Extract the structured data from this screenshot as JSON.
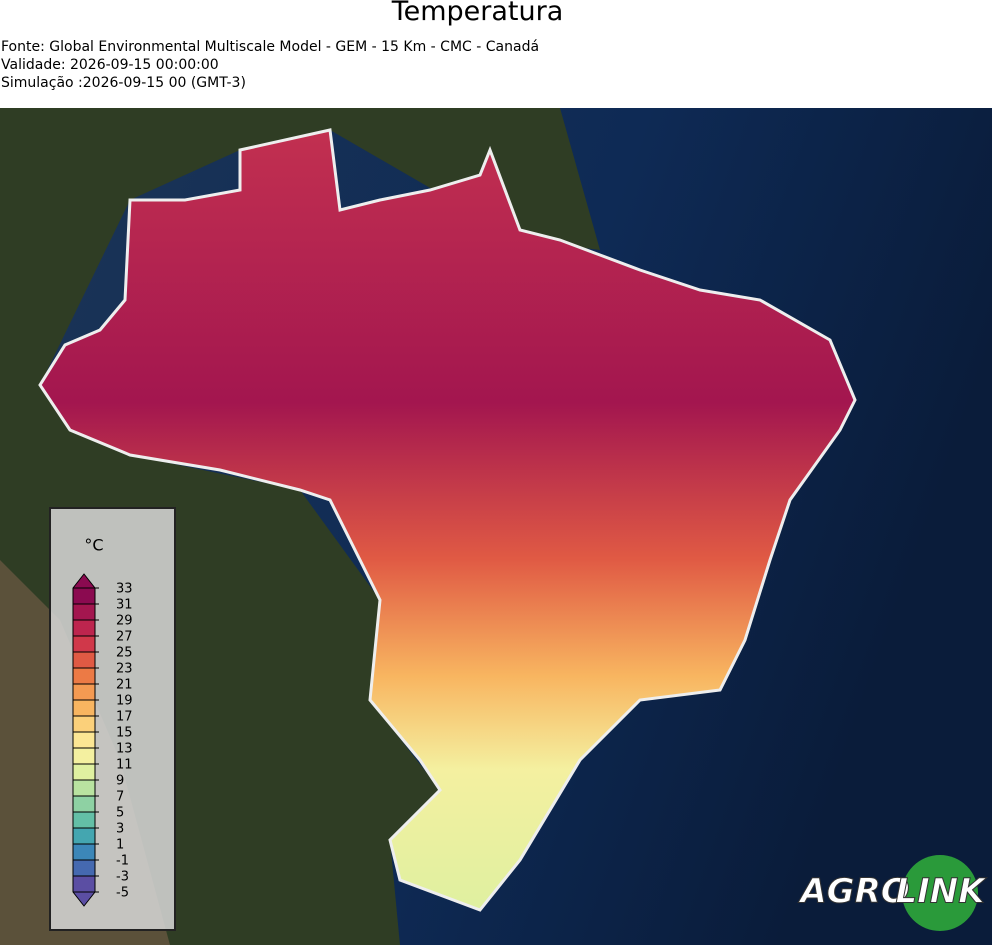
{
  "header": {
    "title": "Temperatura",
    "lines": [
      "Fonte: Global Environmental Multiscale Model - GEM - 15 Km - CMC - Canadá",
      "Validade: 2026-09-15 00:00:00",
      "Simulação :2026-09-15 00 (GMT-3)"
    ]
  },
  "legend": {
    "unit": "°C",
    "ticks": [
      33,
      31,
      29,
      27,
      25,
      23,
      21,
      19,
      17,
      15,
      13,
      11,
      9,
      7,
      5,
      3,
      1,
      -1,
      -3,
      -5
    ],
    "colors": [
      "#8b0a50",
      "#a3164f",
      "#bd254e",
      "#d0384a",
      "#e05a44",
      "#ec7a45",
      "#f49a52",
      "#f8b560",
      "#fbd07a",
      "#fce694",
      "#f4f0a0",
      "#dff0a0",
      "#b9e3a0",
      "#8ed1a3",
      "#63bfa6",
      "#44a6b0",
      "#3c87b8",
      "#4569b0",
      "#5b4ea3"
    ]
  },
  "logo": {
    "left": "AGRO",
    "right": "LINK"
  }
}
